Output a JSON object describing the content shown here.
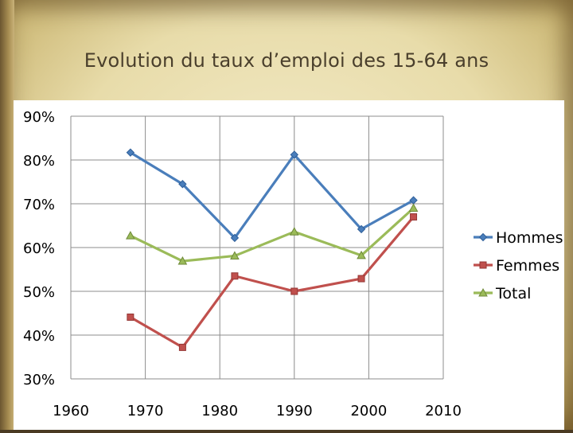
{
  "slide": {
    "title": "Evolution du taux d’emploi des 15-64 ans"
  },
  "chart_data": {
    "type": "line",
    "title": "",
    "xlabel": "",
    "ylabel": "",
    "xlim": [
      1960,
      2010
    ],
    "ylim": [
      30,
      90
    ],
    "x_ticks": [
      1960,
      1970,
      1980,
      1990,
      2000,
      2010
    ],
    "x_tick_labels": [
      "1960",
      "1970",
      "1980",
      "1990",
      "2000",
      "2010"
    ],
    "y_ticks": [
      30,
      40,
      50,
      60,
      70,
      80,
      90
    ],
    "y_tick_labels": [
      "30%",
      "40%",
      "50%",
      "60%",
      "70%",
      "80%",
      "90%"
    ],
    "grid": "vertical and horizontal",
    "legend_position": "right",
    "series": [
      {
        "name": "Hommes",
        "color": "#4a7ebb",
        "marker": "diamond",
        "x": [
          1968,
          1975,
          1982,
          1990,
          1999,
          2006
        ],
        "y": [
          81.7,
          74.5,
          62.2,
          81.2,
          64.2,
          70.8
        ]
      },
      {
        "name": "Femmes",
        "color": "#c0504d",
        "marker": "square",
        "x": [
          1968,
          1975,
          1982,
          1990,
          1999,
          2006
        ],
        "y": [
          44.1,
          37.2,
          53.5,
          50.0,
          52.9,
          67.0
        ]
      },
      {
        "name": "Total",
        "color": "#9bbb59",
        "marker": "triangle",
        "x": [
          1968,
          1975,
          1982,
          1990,
          1999,
          2006
        ],
        "y": [
          62.7,
          56.9,
          58.1,
          63.6,
          58.2,
          69.0
        ]
      }
    ]
  }
}
